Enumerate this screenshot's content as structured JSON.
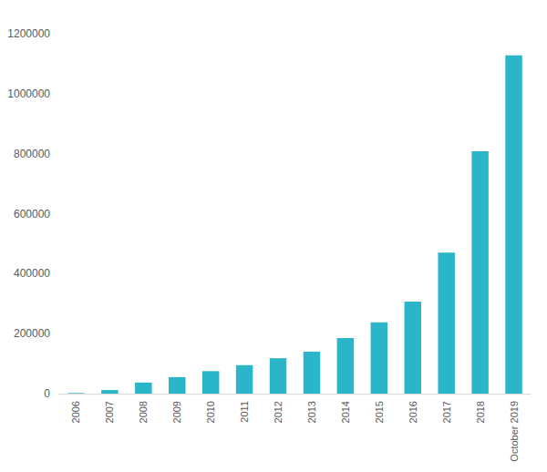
{
  "chart_data": {
    "type": "bar",
    "categories": [
      "2006",
      "2007",
      "2008",
      "2009",
      "2010",
      "2011",
      "2012",
      "2013",
      "2014",
      "2015",
      "2016",
      "2017",
      "2018",
      "October 2019"
    ],
    "values": [
      2000,
      12000,
      37000,
      55000,
      75000,
      95000,
      118000,
      140000,
      185000,
      238000,
      307000,
      470000,
      808000,
      1128000
    ],
    "color": "#2ab5c8",
    "ylim": [
      0,
      1200000
    ],
    "yticks": [
      0,
      200000,
      400000,
      600000,
      800000,
      1000000,
      1200000
    ],
    "grid": false
  }
}
